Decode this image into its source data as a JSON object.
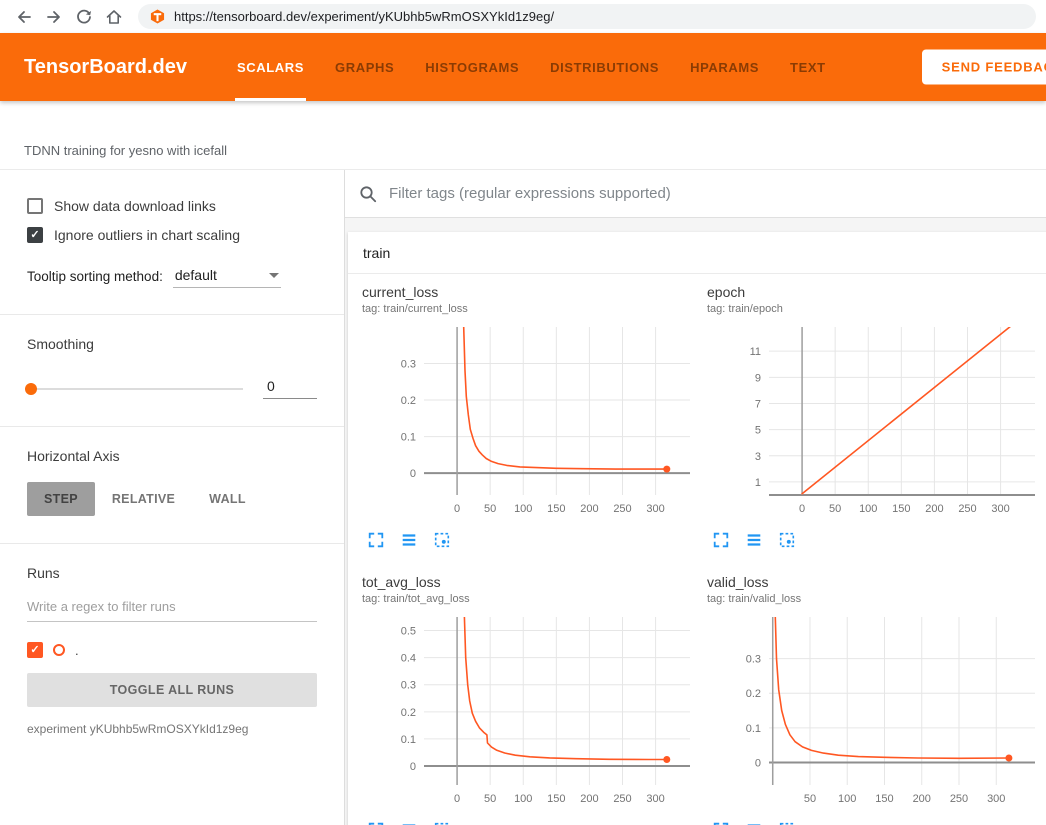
{
  "browser": {
    "url": "https://tensorboard.dev/experiment/yKUbhb5wRmOSXYkId1z9eg/"
  },
  "header": {
    "brand": "TensorBoard.dev",
    "tabs": [
      {
        "label": "SCALARS",
        "active": true
      },
      {
        "label": "GRAPHS",
        "active": false
      },
      {
        "label": "HISTOGRAMS",
        "active": false
      },
      {
        "label": "DISTRIBUTIONS",
        "active": false
      },
      {
        "label": "HPARAMS",
        "active": false
      },
      {
        "label": "TEXT",
        "active": false
      }
    ],
    "feedback_button": "SEND FEEDBACK"
  },
  "experiment": {
    "title": "TDNN training for yesno with icefall",
    "name_line": "experiment yKUbhb5wRmOSXYkId1z9eg"
  },
  "sidebar": {
    "show_download_label": "Show data download links",
    "ignore_outliers_label": "Ignore outliers in chart scaling",
    "tooltip_sort_label": "Tooltip sorting method:",
    "tooltip_sort_value": "default",
    "smoothing_label": "Smoothing",
    "smoothing_value": "0",
    "horizontal_axis_label": "Horizontal Axis",
    "axis_buttons": [
      "STEP",
      "RELATIVE",
      "WALL"
    ],
    "runs_label": "Runs",
    "runs_filter_placeholder": "Write a regex to filter runs",
    "run_name": ".",
    "toggle_all_label": "TOGGLE ALL RUNS"
  },
  "main": {
    "filter_placeholder": "Filter tags (regular expressions supported)",
    "card_title": "train"
  },
  "colors": {
    "accent": "#fa6b0a",
    "run_color": "#ff5722",
    "toolbar_icon": "#2196f3"
  },
  "chart_data": [
    {
      "type": "line",
      "title": "current_loss",
      "subtitle": "tag: train/current_loss",
      "xlabel": "step",
      "xlim": [
        -50,
        352
      ],
      "ylim": [
        -0.06,
        0.4
      ],
      "xticks": [
        0,
        50,
        100,
        150,
        200,
        250,
        300
      ],
      "yticks": [
        0,
        0.1,
        0.2,
        0.3
      ],
      "grid": true,
      "series": [
        {
          "name": ".",
          "color": "#ff5722",
          "end_dot": true,
          "points": [
            [
              9,
              0.6
            ],
            [
              10,
              0.4
            ],
            [
              12,
              0.28
            ],
            [
              14,
              0.21
            ],
            [
              17,
              0.16
            ],
            [
              20,
              0.12
            ],
            [
              24,
              0.095
            ],
            [
              28,
              0.075
            ],
            [
              33,
              0.06
            ],
            [
              38,
              0.05
            ],
            [
              44,
              0.04
            ],
            [
              52,
              0.032
            ],
            [
              62,
              0.026
            ],
            [
              75,
              0.021
            ],
            [
              95,
              0.017
            ],
            [
              120,
              0.015
            ],
            [
              150,
              0.013
            ],
            [
              190,
              0.012
            ],
            [
              240,
              0.011
            ],
            [
              290,
              0.011
            ],
            [
              317,
              0.011
            ]
          ]
        }
      ]
    },
    {
      "type": "line",
      "title": "epoch",
      "subtitle": "tag: train/epoch",
      "xlabel": "step",
      "xlim": [
        -50,
        352
      ],
      "ylim": [
        0,
        12.85
      ],
      "xticks": [
        0,
        50,
        100,
        150,
        200,
        250,
        300
      ],
      "yticks": [
        1,
        3,
        5,
        7,
        9,
        11
      ],
      "grid": true,
      "series": [
        {
          "name": ".",
          "color": "#ff5722",
          "end_dot": false,
          "points": [
            [
              0,
              0.1
            ],
            [
              320,
              13.1
            ]
          ]
        }
      ]
    },
    {
      "type": "line",
      "title": "tot_avg_loss",
      "subtitle": "tag: train/tot_avg_loss",
      "xlabel": "step",
      "xlim": [
        -50,
        352
      ],
      "ylim": [
        -0.07,
        0.55
      ],
      "xticks": [
        0,
        50,
        100,
        150,
        200,
        250,
        300
      ],
      "yticks": [
        0,
        0.1,
        0.2,
        0.3,
        0.4,
        0.5
      ],
      "grid": true,
      "series": [
        {
          "name": ".",
          "color": "#ff5722",
          "end_dot": true,
          "points": [
            [
              9,
              1.0
            ],
            [
              11,
              0.55
            ],
            [
              13,
              0.4
            ],
            [
              16,
              0.3
            ],
            [
              19,
              0.24
            ],
            [
              23,
              0.195
            ],
            [
              28,
              0.165
            ],
            [
              34,
              0.14
            ],
            [
              40,
              0.125
            ],
            [
              45,
              0.115
            ],
            [
              46,
              0.085
            ],
            [
              52,
              0.07
            ],
            [
              60,
              0.058
            ],
            [
              72,
              0.048
            ],
            [
              88,
              0.04
            ],
            [
              110,
              0.034
            ],
            [
              140,
              0.03
            ],
            [
              180,
              0.027
            ],
            [
              230,
              0.025
            ],
            [
              290,
              0.024
            ],
            [
              317,
              0.024
            ]
          ]
        }
      ]
    },
    {
      "type": "line",
      "title": "valid_loss",
      "subtitle": "tag: train/valid_loss",
      "xlabel": "step",
      "xlim": [
        -5,
        352
      ],
      "ylim": [
        -0.065,
        0.42
      ],
      "xticks": [
        50,
        100,
        150,
        200,
        250,
        300
      ],
      "yticks": [
        0,
        0.1,
        0.2,
        0.3
      ],
      "grid": true,
      "series": [
        {
          "name": ".",
          "color": "#ff5722",
          "end_dot": true,
          "points": [
            [
              2,
              0.8
            ],
            [
              3,
              0.45
            ],
            [
              5,
              0.3
            ],
            [
              8,
              0.21
            ],
            [
              12,
              0.15
            ],
            [
              17,
              0.11
            ],
            [
              23,
              0.08
            ],
            [
              30,
              0.06
            ],
            [
              40,
              0.045
            ],
            [
              52,
              0.035
            ],
            [
              68,
              0.027
            ],
            [
              88,
              0.021
            ],
            [
              115,
              0.017
            ],
            [
              150,
              0.015
            ],
            [
              195,
              0.013
            ],
            [
              250,
              0.012
            ],
            [
              317,
              0.013
            ]
          ]
        }
      ]
    }
  ]
}
